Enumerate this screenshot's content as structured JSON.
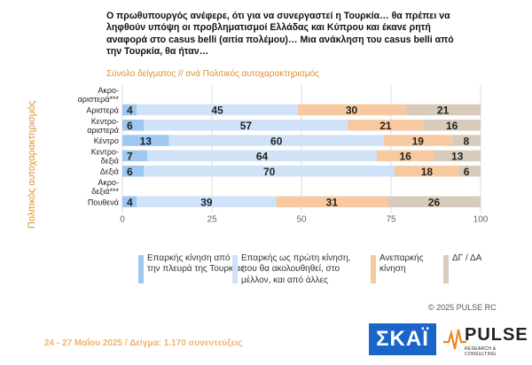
{
  "question": "Ο πρωθυπουργός ανέφερε, ότι για να συνεργαστεί η Τουρκία… θα πρέπει να ληφθούν υπόψη οι προβληματισμοί Ελλάδας και Κύπρου και έκανε ρητή αναφορά στο casus belli (αιτία πολέμου)… Μια ανάκληση του casus belli από την Τουρκία, θα ήταν…",
  "subtitle": "Σύνολο δείγματος // ανά Πολιτικός αυτοχαρακτηρισμός",
  "copyright": "© 2025 PULSE RC",
  "footer": "24 - 27 Μαΐου 2025  /  Δείγμα:  1.170 συνεντεύξεις",
  "logos": {
    "skai": "ΣΚΑΪ",
    "pulse": "PULSE",
    "pulse_tag": "RESEARCH & CONSULTING"
  },
  "colors": {
    "s1": "#9fc7f0",
    "s2": "#cfe2f7",
    "s3": "#f7c9a0",
    "s4": "#d9cbbb"
  },
  "chart_data": {
    "type": "bar",
    "orientation": "horizontal",
    "stacked": true,
    "ylabel": "Πολιτικός αυτοχαρακτηρισμός",
    "categories": [
      "Ακρο-αριστερά***",
      "Αριστερά",
      "Κεντρο-αριστερά",
      "Κέντρο",
      "Κεντρο-δεξιά",
      "Δεξιά",
      "Ακρο-δεξιά***",
      "Πουθενά"
    ],
    "series": [
      {
        "name": "Επαρκής κίνηση από την πλευρά της Τουρκίας",
        "values": [
          null,
          4,
          6,
          13,
          7,
          6,
          null,
          4
        ]
      },
      {
        "name": "Επαρκής ως πρώτη κίνηση, που θα ακολουθηθεί, στο μέλλον, και από άλλες",
        "values": [
          null,
          45,
          57,
          60,
          64,
          70,
          null,
          39
        ]
      },
      {
        "name": "Ανεπαρκής κίνηση",
        "values": [
          null,
          30,
          21,
          19,
          16,
          18,
          null,
          31
        ]
      },
      {
        "name": "ΔΓ / ΔΑ",
        "values": [
          null,
          21,
          16,
          8,
          13,
          6,
          null,
          26
        ]
      }
    ],
    "xlim": [
      0,
      100
    ],
    "xticks": [
      0,
      25,
      50,
      75,
      100
    ],
    "grid": true
  }
}
